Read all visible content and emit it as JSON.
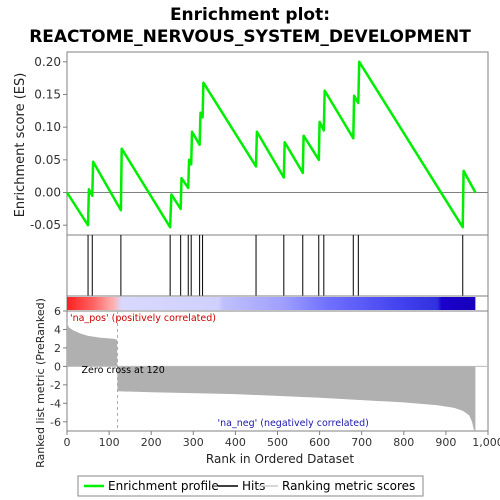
{
  "chart_data": {
    "type": "line",
    "title_line1": "Enrichment plot:",
    "title_line2": "REACTOME_NERVOUS_SYSTEM_DEVELOPMENT",
    "es_panel": {
      "ylabel": "Enrichment score (ES)",
      "ylim": [
        -0.065,
        0.215
      ],
      "yticks": [
        -0.05,
        0.0,
        0.05,
        0.1,
        0.15,
        0.2
      ],
      "ytick_labels": [
        "-0.05",
        "0.00",
        "0.05",
        "0.10",
        "0.15",
        "0.20"
      ],
      "color": "#00ee00",
      "series": {
        "name": "Enrichment profile",
        "x": [
          0,
          50,
          52,
          60,
          62,
          128,
          130,
          245,
          248,
          270,
          272,
          288,
          290,
          295,
          297,
          315,
          317,
          322,
          324,
          449,
          451,
          515,
          517,
          560,
          562,
          598,
          600,
          610,
          612,
          680,
          682,
          692,
          694,
          940,
          942,
          970
        ],
        "y": [
          0.0,
          -0.05,
          0.005,
          -0.005,
          0.047,
          -0.027,
          0.067,
          -0.053,
          -0.003,
          -0.025,
          0.022,
          0.007,
          0.05,
          0.043,
          0.093,
          0.073,
          0.122,
          0.115,
          0.168,
          0.04,
          0.093,
          0.023,
          0.077,
          0.03,
          0.087,
          0.05,
          0.108,
          0.095,
          0.156,
          0.083,
          0.148,
          0.137,
          0.2,
          -0.053,
          0.033,
          0.0
        ]
      }
    },
    "hits": [
      50,
      60,
      128,
      245,
      270,
      288,
      295,
      315,
      322,
      449,
      515,
      560,
      598,
      610,
      680,
      692,
      940
    ],
    "rank_panel": {
      "ylabel": "Ranked list metric (PreRanked)",
      "ylim": [
        -7,
        6
      ],
      "yticks": [
        -6,
        -4,
        -2,
        0,
        2,
        4,
        6
      ],
      "ytick_labels": [
        "-6",
        "-4",
        "-2",
        "0",
        "2",
        "4",
        "6"
      ],
      "annot_pos": "'na_pos' (positively correlated)",
      "annot_neg": "'na_neg' (negatively correlated)",
      "zero_cross_label": "Zero cross at 120",
      "zero_cross": 120,
      "metric_x": [
        0,
        5,
        15,
        30,
        50,
        80,
        110,
        119,
        120,
        121,
        200,
        400,
        600,
        800,
        880,
        920,
        940,
        955,
        962,
        966,
        970
      ],
      "metric_y": [
        4.7,
        4.2,
        3.9,
        3.6,
        3.3,
        3.1,
        3.0,
        2.9,
        -2.6,
        -2.7,
        -2.8,
        -3.0,
        -3.4,
        -3.9,
        -4.2,
        -4.5,
        -4.8,
        -5.3,
        -6.0,
        -6.8,
        -7.0
      ],
      "fill_color": "#b0b0b0"
    },
    "xaxis": {
      "label": "Rank in Ordered Dataset",
      "xlim": [
        0,
        1000
      ],
      "xticks": [
        0,
        100,
        200,
        300,
        400,
        500,
        600,
        700,
        800,
        900,
        1000
      ],
      "xtick_labels": [
        "0",
        "100",
        "200",
        "300",
        "400",
        "500",
        "600",
        "700",
        "800",
        "900",
        "1,000"
      ],
      "n_genes": 970
    },
    "colorbar": {
      "stops": [
        {
          "rank": 0,
          "color": "#ff2020"
        },
        {
          "rank": 60,
          "color": "#ff6060"
        },
        {
          "rank": 110,
          "color": "#ffb0b0"
        },
        {
          "rank": 130,
          "color": "#d8d8ff"
        },
        {
          "rank": 360,
          "color": "#d0d0ff"
        },
        {
          "rank": 370,
          "color": "#c0c0ff"
        },
        {
          "rank": 510,
          "color": "#a0a0ff"
        },
        {
          "rank": 620,
          "color": "#7070ff"
        },
        {
          "rank": 800,
          "color": "#4040ee"
        },
        {
          "rank": 880,
          "color": "#3030dd"
        },
        {
          "rank": 890,
          "color": "#1a00cc"
        },
        {
          "rank": 970,
          "color": "#1800bb"
        }
      ]
    },
    "legend": {
      "items": [
        {
          "label": "Enrichment profile",
          "color": "#00ee00",
          "kind": "line"
        },
        {
          "label": "Hits",
          "color": "#000000",
          "kind": "line"
        },
        {
          "label": "Ranking metric scores",
          "color": "#cccccc",
          "kind": "line"
        }
      ],
      "placement": "bottom"
    }
  }
}
